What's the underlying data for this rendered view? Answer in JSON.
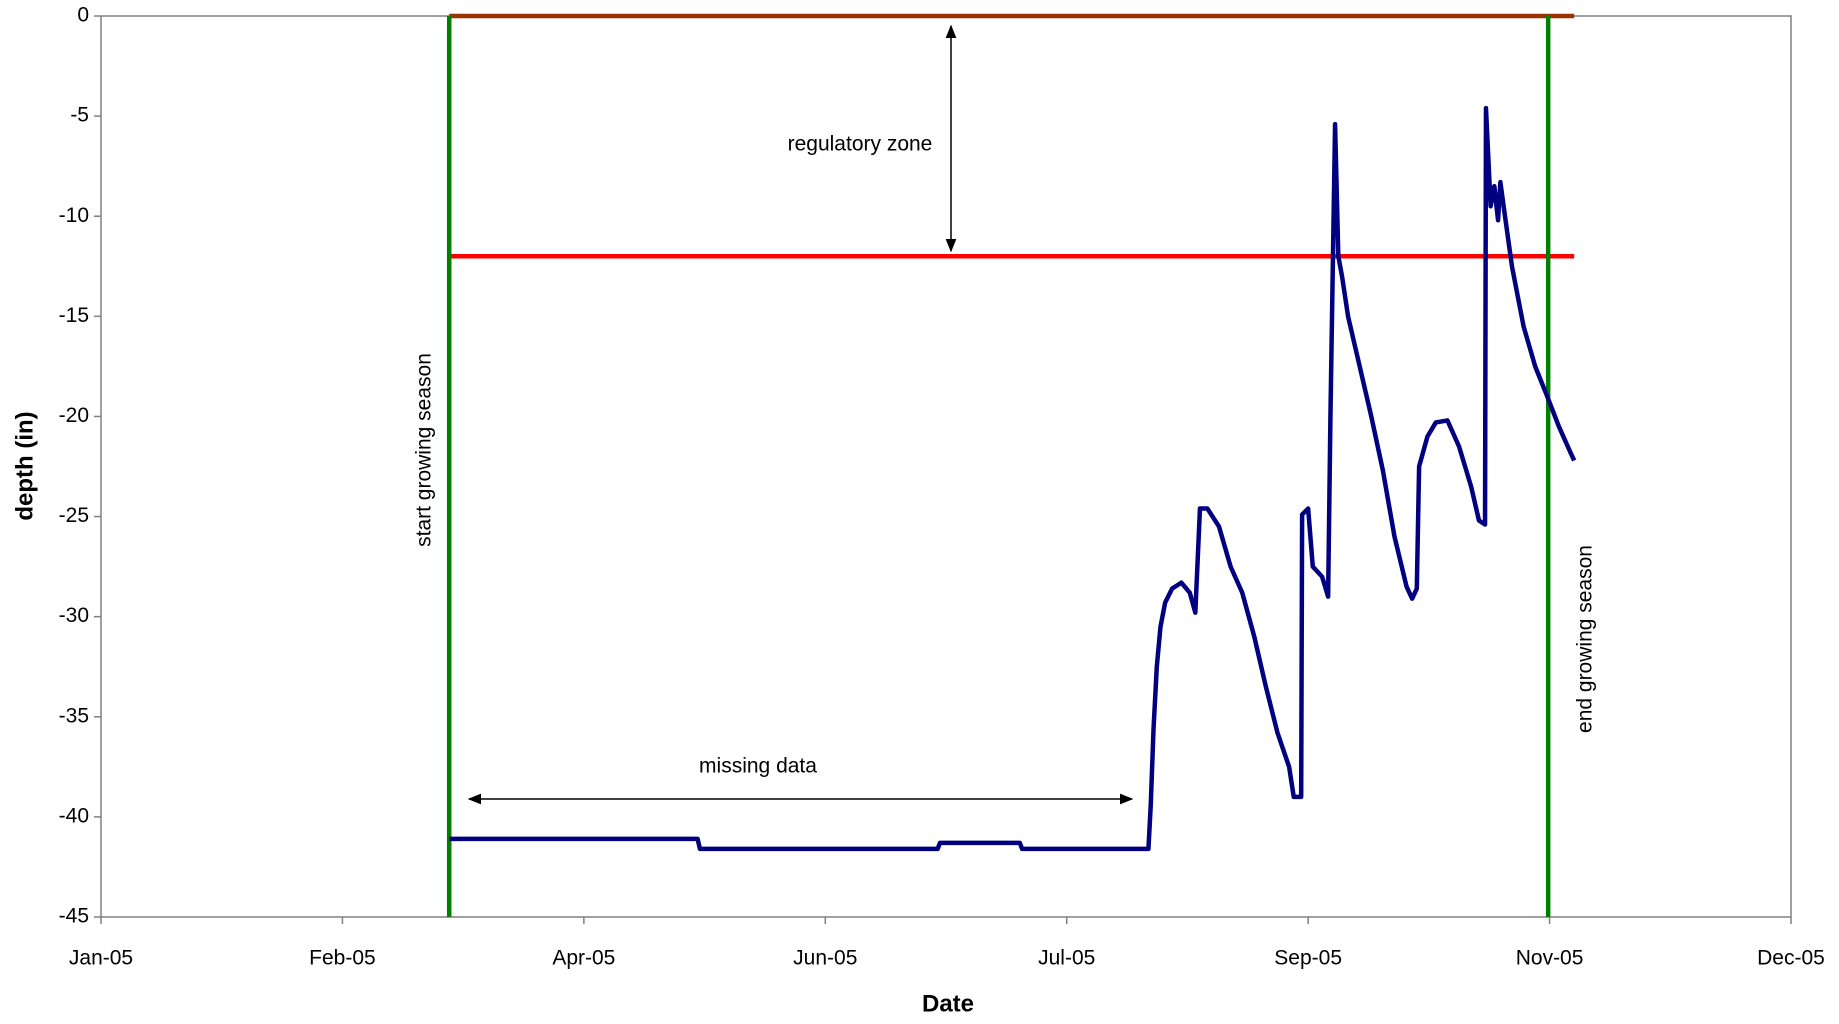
{
  "chart_data": {
    "type": "line",
    "x_label": "Date",
    "y_label": "depth (in)",
    "xlim": [
      38353,
      38717
    ],
    "xticks": [
      {
        "value": 38353,
        "label": "Jan-05"
      },
      {
        "value": 38405,
        "label": "Feb-05"
      },
      {
        "value": 38457,
        "label": "Apr-05"
      },
      {
        "value": 38509,
        "label": "Jun-05"
      },
      {
        "value": 38561,
        "label": "Jul-05"
      },
      {
        "value": 38613,
        "label": "Sep-05"
      },
      {
        "value": 38665,
        "label": "Nov-05"
      },
      {
        "value": 38717,
        "label": "Dec-05"
      }
    ],
    "ylim": [
      -45,
      0
    ],
    "yticks": [
      0,
      -5,
      -10,
      -15,
      -20,
      -25,
      -30,
      -35,
      -40,
      -45
    ],
    "series": [
      {
        "color": "#993300",
        "x": [
          38428,
          38670.3
        ],
        "values": [
          0,
          0
        ]
      },
      {
        "color": "#ff0000",
        "x": [
          38428,
          38670.3
        ],
        "values": [
          -12,
          -12
        ]
      },
      {
        "color": "#008000",
        "x": [
          38428,
          38428
        ],
        "values": [
          0,
          -45
        ]
      },
      {
        "color": "#008000",
        "x": [
          38664.7,
          38664.7
        ],
        "values": [
          0,
          -45
        ]
      },
      {
        "color": "#000080",
        "x": [
          38428.0,
          38481.5,
          38482.0,
          38533.2,
          38533.7,
          38550.9,
          38551.4,
          38578.6,
          38579.1,
          38579.7,
          38580.4,
          38581.2,
          38582.2,
          38583.7,
          38585.7,
          38587.5,
          38588.7,
          38589.7,
          38591.3,
          38593.8,
          38596.3,
          38598.8,
          38601.4,
          38603.9,
          38606.4,
          38608.9,
          38609.9,
          38611.5,
          38611.7,
          38613.0,
          38614.0,
          38616.0,
          38617.3,
          38617.8,
          38618.8,
          38619.5,
          38620.3,
          38621.6,
          38624.1,
          38626.6,
          38629.1,
          38631.6,
          38634.2,
          38635.4,
          38636.4,
          38636.9,
          38638.7,
          38640.5,
          38643.0,
          38645.5,
          38648.1,
          38649.8,
          38651.1,
          38651.3,
          38652.3,
          38653.1,
          38653.9,
          38654.4,
          38655.4,
          38656.9,
          38659.4,
          38661.9,
          38664.5,
          38667.0,
          38669.5,
          38670.3
        ],
        "values": [
          -41.1,
          -41.1,
          -41.6,
          -41.6,
          -41.3,
          -41.3,
          -41.6,
          -41.6,
          -39.4,
          -35.6,
          -32.5,
          -30.5,
          -29.3,
          -28.6,
          -28.3,
          -28.8,
          -29.8,
          -24.6,
          -24.6,
          -25.5,
          -27.5,
          -28.8,
          -31,
          -33.5,
          -35.8,
          -37.5,
          -39,
          -39,
          -24.9,
          -24.6,
          -27.5,
          -28,
          -29,
          -20,
          -5.4,
          -12,
          -13,
          -15,
          -17.5,
          -20,
          -22.7,
          -26,
          -28.5,
          -29.1,
          -28.6,
          -22.5,
          -21,
          -20.3,
          -20.2,
          -21.5,
          -23.5,
          -25.2,
          -25.4,
          -4.6,
          -9.5,
          -8.5,
          -10.2,
          -8.3,
          -10,
          -12.5,
          -15.5,
          -17.5,
          -19,
          -20.5,
          -21.8,
          -22.2
        ]
      }
    ],
    "annotations": [
      "regulatory zone",
      "missing data",
      "start growing season",
      "end growing season"
    ]
  }
}
